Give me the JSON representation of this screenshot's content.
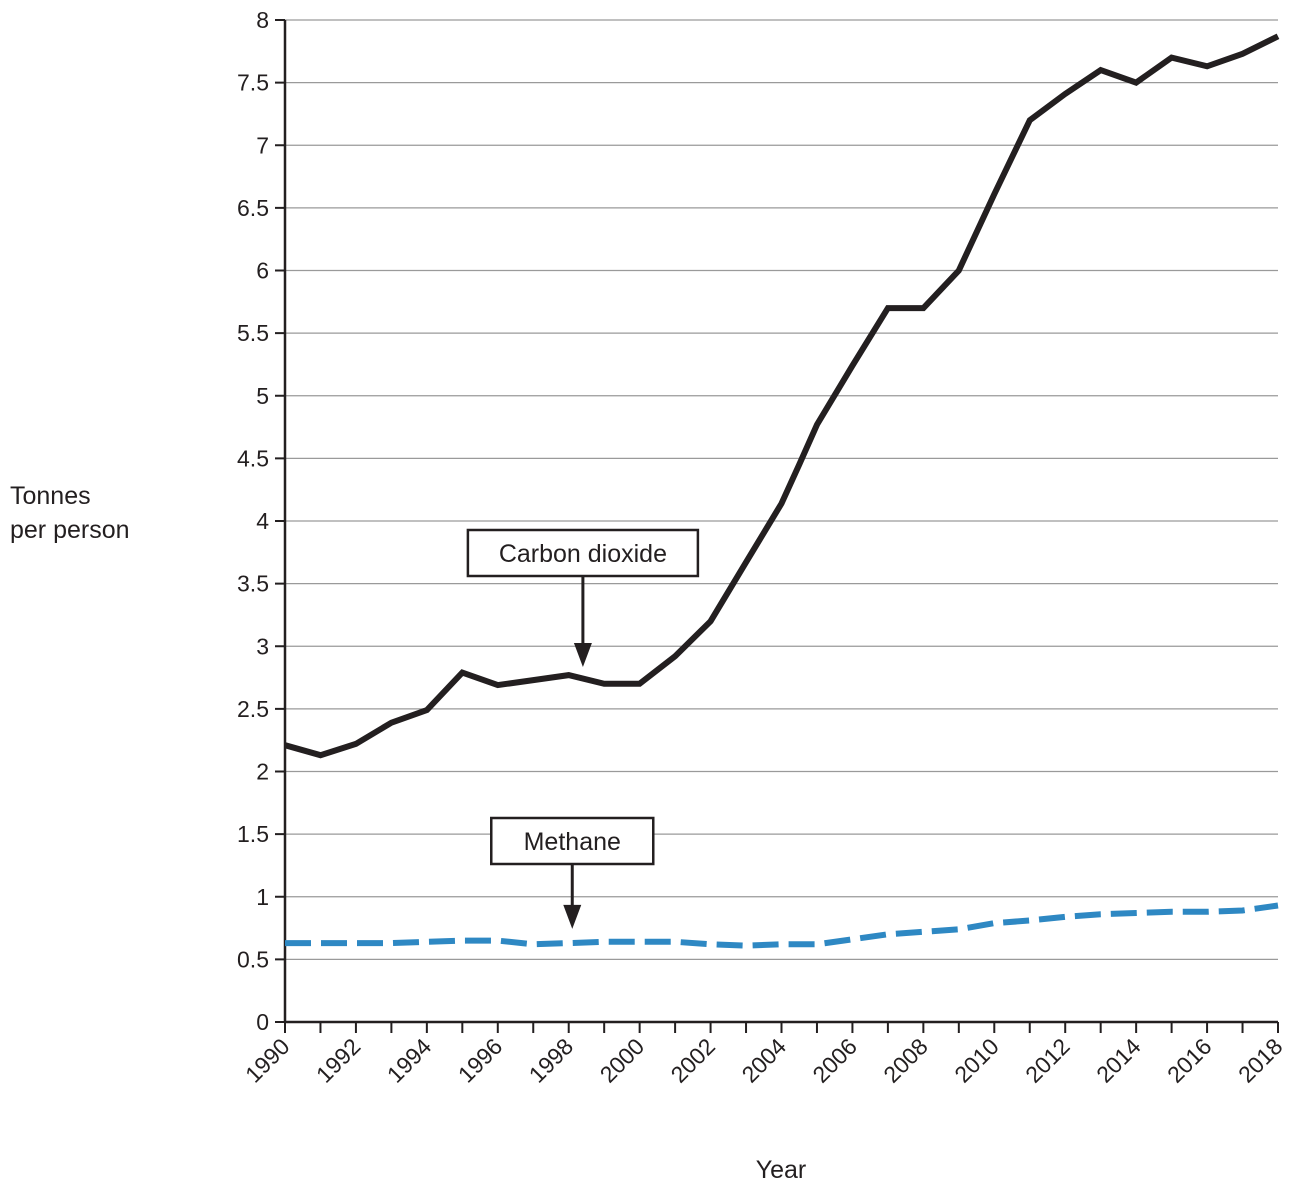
{
  "chart_data": {
    "type": "line",
    "title": "",
    "xlabel": "Year",
    "ylabel_lines": [
      "Tonnes",
      "per person"
    ],
    "xlim": [
      1990,
      2018
    ],
    "ylim": [
      0,
      8
    ],
    "x_ticks": [
      1990,
      1992,
      1994,
      1996,
      1998,
      2000,
      2002,
      2004,
      2006,
      2008,
      2010,
      2012,
      2014,
      2016,
      2018
    ],
    "x_tick_labels": [
      "1990",
      "1992",
      "1994",
      "1996",
      "1998",
      "2000",
      "2002",
      "2004",
      "2006",
      "2008",
      "2010",
      "2012",
      "2014",
      "2016",
      "2018"
    ],
    "y_ticks": [
      0,
      0.5,
      1,
      1.5,
      2,
      2.5,
      3,
      3.5,
      4,
      4.5,
      5,
      5.5,
      6,
      6.5,
      7,
      7.5,
      8
    ],
    "y_tick_labels": [
      "0",
      "0.5",
      "1",
      "1.5",
      "2",
      "2.5",
      "3",
      "3.5",
      "4",
      "4.5",
      "5",
      "5.5",
      "6",
      "6.5",
      "7",
      "7.5",
      "8"
    ],
    "grid": "horizontal",
    "series": [
      {
        "name": "Carbon dioxide",
        "color": "#231f20",
        "style": "solid",
        "x": [
          1990,
          1991,
          1992,
          1993,
          1994,
          1995,
          1996,
          1997,
          1998,
          1999,
          2000,
          2001,
          2002,
          2003,
          2004,
          2004.5,
          2005,
          2006,
          2007,
          2008,
          2009,
          2010,
          2011,
          2012,
          2013,
          2014,
          2015,
          2016,
          2017,
          2018
        ],
        "y": [
          2.21,
          2.13,
          2.22,
          2.39,
          2.49,
          2.79,
          2.69,
          2.73,
          2.77,
          2.7,
          2.7,
          2.92,
          3.2,
          3.67,
          4.14,
          4.45,
          4.77,
          5.24,
          5.7,
          5.7,
          6.0,
          6.61,
          7.2,
          7.41,
          7.6,
          7.5,
          7.7,
          7.63,
          7.73,
          7.87
        ]
      },
      {
        "name": "Methane",
        "color": "#2e88c3",
        "style": "dashed",
        "x": [
          1990,
          1991,
          1992,
          1993,
          1994,
          1995,
          1996,
          1997,
          1998,
          1999,
          2000,
          2001,
          2002,
          2003,
          2004,
          2005,
          2006,
          2007,
          2008,
          2009,
          2010,
          2011,
          2012,
          2013,
          2014,
          2015,
          2016,
          2017,
          2018
        ],
        "y": [
          0.63,
          0.63,
          0.63,
          0.63,
          0.64,
          0.65,
          0.65,
          0.62,
          0.63,
          0.64,
          0.64,
          0.64,
          0.62,
          0.61,
          0.62,
          0.62,
          0.66,
          0.7,
          0.72,
          0.74,
          0.79,
          0.81,
          0.84,
          0.86,
          0.87,
          0.88,
          0.88,
          0.89,
          0.93
        ]
      }
    ],
    "annotations": [
      {
        "text": "Carbon dioxide",
        "series": "Carbon dioxide",
        "arrow_to_x": 1998.4,
        "arrow_to_y": 2.77
      },
      {
        "text": "Methane",
        "series": "Methane",
        "arrow_to_x": 1998.1,
        "arrow_to_y": 0.68
      }
    ]
  }
}
